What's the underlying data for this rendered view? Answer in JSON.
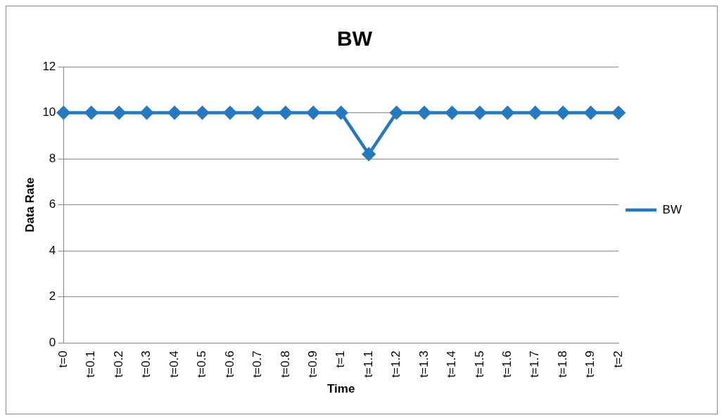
{
  "chart_data": {
    "type": "line",
    "title": "BW",
    "xlabel": "Time",
    "ylabel": "Data Rate",
    "categories": [
      "t=0",
      "t=0.1",
      "t=0.2",
      "t=0.3",
      "t=0.4",
      "t=0.5",
      "t=0.6",
      "t=0.7",
      "t=0.8",
      "t=0.9",
      "t=1",
      "t=1.1",
      "t=1.2",
      "t=1.3",
      "t=1.4",
      "t=1.5",
      "t=1.6",
      "t=1.7",
      "t=1.8",
      "t=1.9",
      "t=2"
    ],
    "series": [
      {
        "name": "BW",
        "color": "#2479c0",
        "values": [
          10,
          10,
          10,
          10,
          10,
          10,
          10,
          10,
          10,
          10,
          10,
          8.2,
          10,
          10,
          10,
          10,
          10,
          10,
          10,
          10,
          10
        ]
      }
    ],
    "ylim": [
      0,
      12
    ],
    "yticks": [
      0,
      2,
      4,
      6,
      8,
      10,
      12
    ],
    "grid": "y",
    "legend": "right",
    "marker": "diamond",
    "line_style": "solid"
  }
}
